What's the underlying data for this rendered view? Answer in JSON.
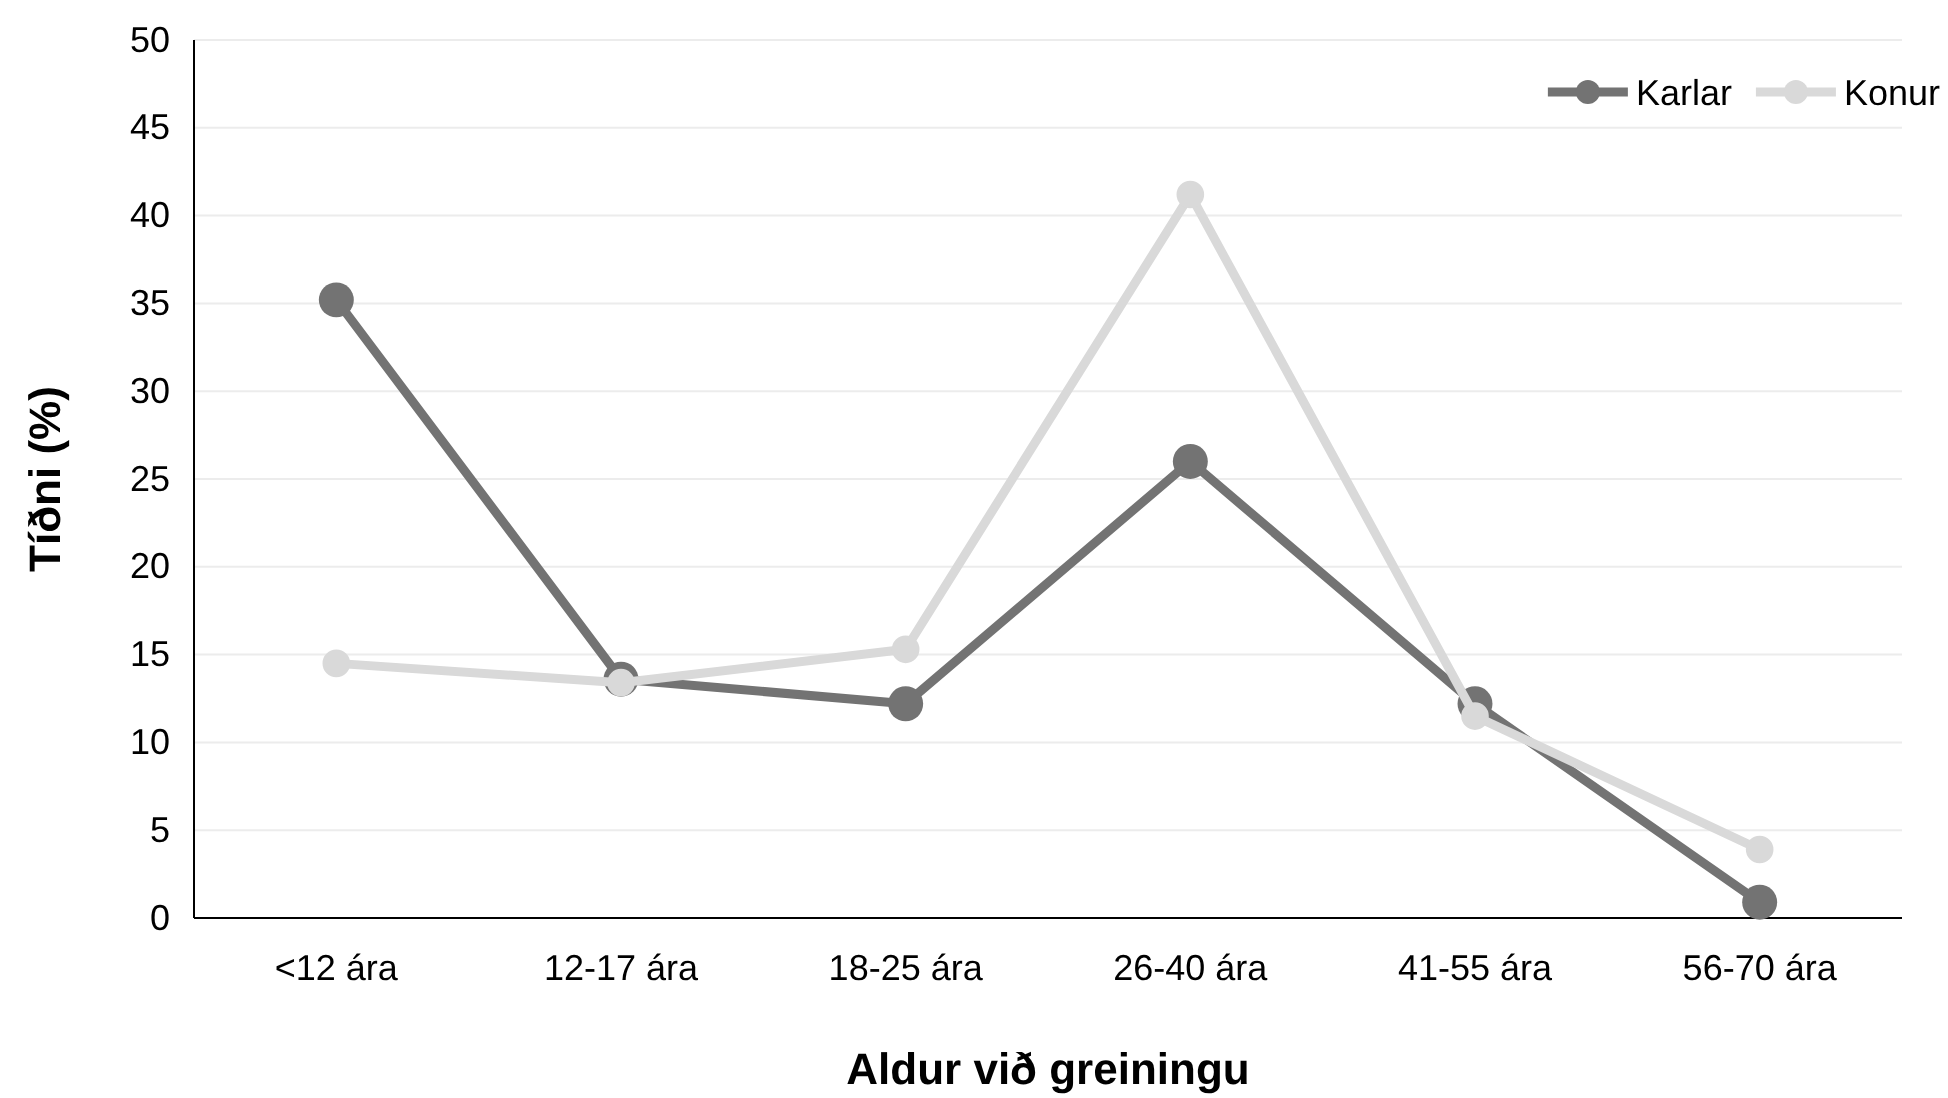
{
  "chart_data": {
    "type": "line",
    "xlabel": "Aldur við greiningu",
    "ylabel": "Tíðni (%)",
    "categories": [
      "<12 ára",
      "12-17 ára",
      "18-25 ára",
      "26-40 ára",
      "41-55 ára",
      "56-70 ára"
    ],
    "series": [
      {
        "name": "Karlar",
        "color": "#737373",
        "values": [
          35.2,
          13.6,
          12.2,
          26.0,
          12.2,
          0.9
        ]
      },
      {
        "name": "Konur",
        "color": "#d9d9d9",
        "values": [
          14.5,
          13.4,
          15.3,
          41.2,
          11.5,
          3.9
        ]
      }
    ],
    "ylim": [
      0,
      50
    ],
    "yticks": [
      0,
      5,
      10,
      15,
      20,
      25,
      30,
      35,
      40,
      45,
      50
    ],
    "grid": "y",
    "legend": "top right",
    "marker": "circle",
    "line_style": "solid"
  }
}
